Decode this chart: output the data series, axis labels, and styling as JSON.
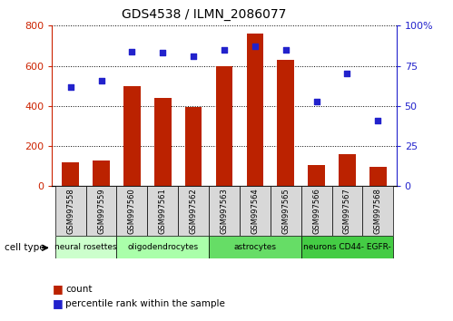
{
  "title": "GDS4538 / ILMN_2086077",
  "categories": [
    "GSM997558",
    "GSM997559",
    "GSM997560",
    "GSM997561",
    "GSM997562",
    "GSM997563",
    "GSM997564",
    "GSM997565",
    "GSM997566",
    "GSM997567",
    "GSM997568"
  ],
  "counts": [
    120,
    130,
    500,
    440,
    395,
    600,
    760,
    630,
    105,
    160,
    95
  ],
  "percentiles": [
    62,
    66,
    84,
    83,
    81,
    85,
    87,
    85,
    53,
    70,
    41
  ],
  "ylim_left": [
    0,
    800
  ],
  "ylim_right": [
    0,
    100
  ],
  "yticks_left": [
    0,
    200,
    400,
    600,
    800
  ],
  "yticks_right": [
    0,
    25,
    50,
    75,
    100
  ],
  "bar_color": "#bb2200",
  "dot_color": "#2222cc",
  "cell_type_label": "cell type",
  "groups": [
    {
      "label": "neural rosettes",
      "start": 0,
      "end": 2,
      "color": "#ccffcc"
    },
    {
      "label": "oligodendrocytes",
      "start": 2,
      "end": 5,
      "color": "#aaffaa"
    },
    {
      "label": "astrocytes",
      "start": 5,
      "end": 8,
      "color": "#66dd66"
    },
    {
      "label": "neurons CD44- EGFR-",
      "start": 8,
      "end": 11,
      "color": "#44cc44"
    }
  ],
  "legend_count_label": "count",
  "legend_pct_label": "percentile rank within the sample",
  "background_color": "#ffffff",
  "tick_color_left": "#cc2200",
  "tick_color_right": "#2222cc",
  "xtick_bg_color": "#d8d8d8"
}
